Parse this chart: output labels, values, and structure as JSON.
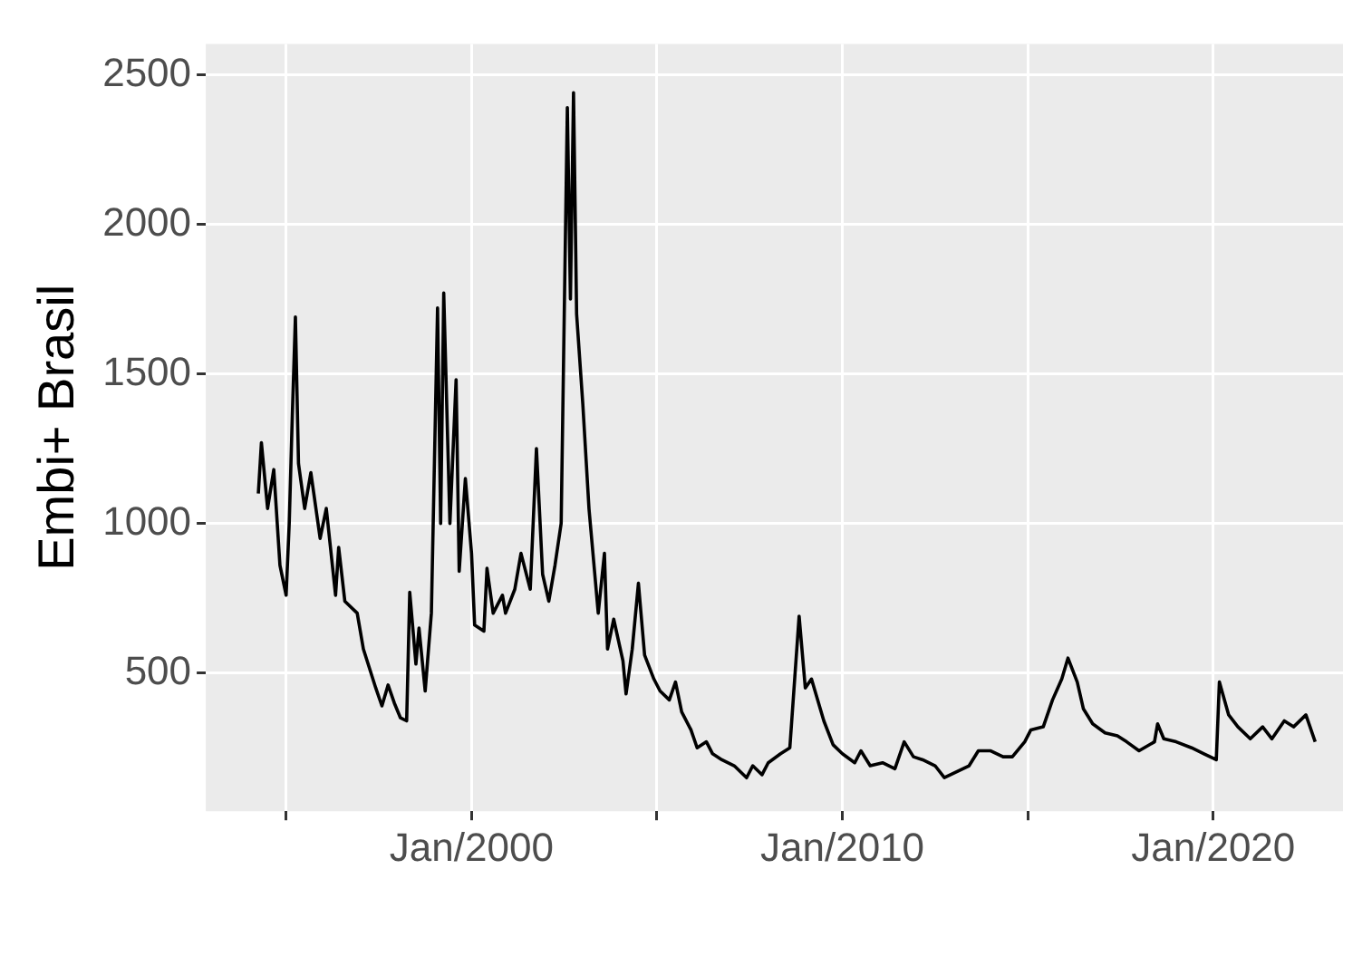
{
  "chart_data": {
    "type": "line",
    "ylabel": "Embi+ Brasil",
    "xlim": [
      "1992-11",
      "2023-07"
    ],
    "ylim": [
      38,
      2603
    ],
    "xticks": [
      {
        "value": "1995-01",
        "label": null
      },
      {
        "value": "2000-01",
        "label": "Jan/2000"
      },
      {
        "value": "2005-01",
        "label": null
      },
      {
        "value": "2010-01",
        "label": "Jan/2010"
      },
      {
        "value": "2015-01",
        "label": null
      },
      {
        "value": "2020-01",
        "label": "Jan/2020"
      }
    ],
    "yticks": [
      500,
      1000,
      1500,
      2000,
      2500
    ],
    "grid": true,
    "legend": false,
    "marker": "none",
    "line_style": "solid",
    "series": [
      {
        "color": "#000000",
        "x": [
          "1994-04",
          "1994-05",
          "1994-07",
          "1994-09",
          "1994-11",
          "1995-01",
          "1995-02",
          "1995-03",
          "1995-04",
          "1995-05",
          "1995-07",
          "1995-09",
          "1995-12",
          "1996-02",
          "1996-05",
          "1996-06",
          "1996-08",
          "1996-12",
          "1997-02",
          "1997-06",
          "1997-08",
          "1997-10",
          "1997-12",
          "1998-02",
          "1998-04",
          "1998-05",
          "1998-07",
          "1998-08",
          "1998-10",
          "1998-12",
          "1999-02",
          "1999-03",
          "1999-04",
          "1999-06",
          "1999-08",
          "1999-09",
          "1999-11",
          "2000-01",
          "2000-02",
          "2000-05",
          "2000-06",
          "2000-08",
          "2000-11",
          "2000-12",
          "2001-03",
          "2001-05",
          "2001-08",
          "2001-10",
          "2001-12",
          "2002-02",
          "2002-04",
          "2002-06",
          "2002-07",
          "2002-08",
          "2002-09",
          "2002-10",
          "2002-11",
          "2003-01",
          "2003-03",
          "2003-06",
          "2003-08",
          "2003-09",
          "2003-11",
          "2004-02",
          "2004-03",
          "2004-05",
          "2004-07",
          "2004-09",
          "2004-12",
          "2005-02",
          "2005-05",
          "2005-07",
          "2005-09",
          "2005-12",
          "2006-02",
          "2006-05",
          "2006-07",
          "2006-10",
          "2007-02",
          "2007-06",
          "2007-08",
          "2007-11",
          "2008-01",
          "2008-05",
          "2008-08",
          "2008-11",
          "2009-01",
          "2009-03",
          "2009-07",
          "2009-10",
          "2010-01",
          "2010-05",
          "2010-07",
          "2010-10",
          "2011-02",
          "2011-06",
          "2011-09",
          "2011-12",
          "2012-03",
          "2012-07",
          "2012-10",
          "2013-02",
          "2013-06",
          "2013-09",
          "2014-01",
          "2014-05",
          "2014-08",
          "2014-12",
          "2015-02",
          "2015-06",
          "2015-09",
          "2015-12",
          "2016-02",
          "2016-05",
          "2016-07",
          "2016-10",
          "2017-02",
          "2017-06",
          "2017-09",
          "2018-01",
          "2018-06",
          "2018-07",
          "2018-09",
          "2019-01",
          "2019-06",
          "2019-10",
          "2020-02",
          "2020-03",
          "2020-06",
          "2020-09",
          "2021-01",
          "2021-05",
          "2021-08",
          "2021-12",
          "2022-03",
          "2022-07",
          "2022-10"
        ],
        "values": [
          1100,
          1270,
          1050,
          1180,
          860,
          760,
          1000,
          1360,
          1690,
          1200,
          1050,
          1170,
          950,
          1050,
          760,
          920,
          740,
          700,
          580,
          450,
          390,
          460,
          400,
          350,
          340,
          770,
          530,
          650,
          440,
          700,
          1720,
          1000,
          1770,
          1000,
          1480,
          840,
          1150,
          900,
          660,
          640,
          850,
          700,
          760,
          700,
          780,
          900,
          780,
          1250,
          830,
          740,
          860,
          1000,
          1700,
          2390,
          1750,
          2440,
          1700,
          1400,
          1050,
          700,
          900,
          580,
          680,
          540,
          430,
          580,
          800,
          560,
          480,
          440,
          410,
          470,
          370,
          310,
          250,
          270,
          230,
          210,
          190,
          150,
          190,
          160,
          200,
          230,
          250,
          690,
          450,
          480,
          340,
          260,
          230,
          200,
          240,
          190,
          200,
          180,
          270,
          220,
          210,
          190,
          150,
          170,
          190,
          240,
          240,
          220,
          220,
          270,
          310,
          320,
          410,
          480,
          550,
          470,
          380,
          330,
          300,
          290,
          270,
          240,
          270,
          330,
          280,
          270,
          250,
          230,
          210,
          470,
          360,
          320,
          280,
          320,
          280,
          340,
          320,
          360,
          270
        ]
      }
    ]
  }
}
